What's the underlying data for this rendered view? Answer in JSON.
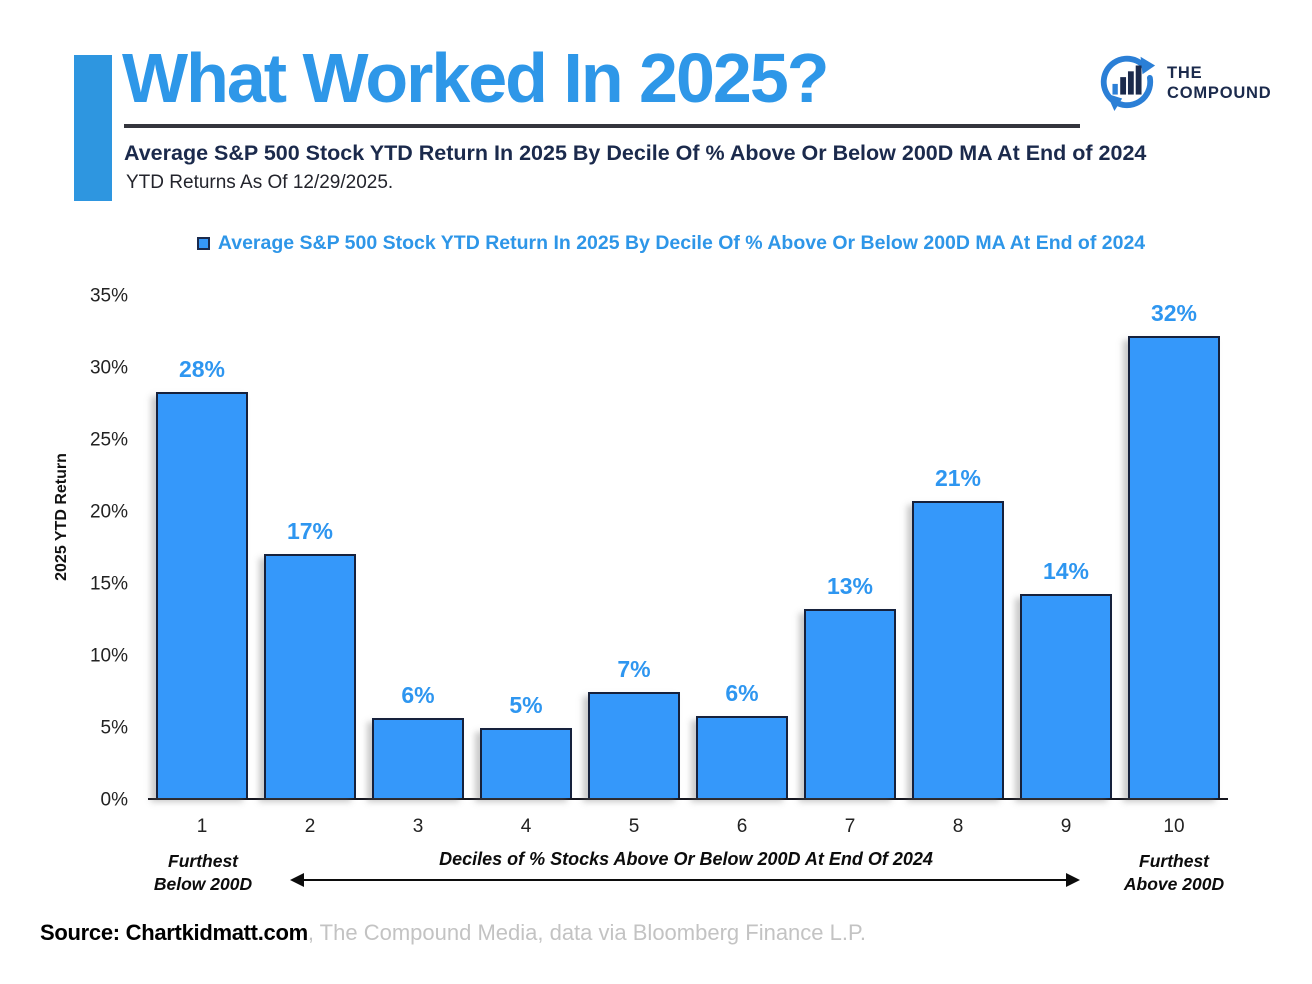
{
  "header": {
    "title": "What Worked In 2025?",
    "subtitle": "Average S&P 500 Stock YTD Return In 2025 By Decile Of % Above Or Below 200D MA At End of 2024",
    "as_of": "YTD Returns As Of 12/29/2025."
  },
  "brand": {
    "line1": "THE",
    "line2": "COMPOUND"
  },
  "chart_data": {
    "type": "bar",
    "legend": "Average S&P 500 Stock YTD Return In 2025 By Decile Of % Above Or Below 200D MA At End of 2024",
    "legend_position": "top",
    "categories": [
      "1",
      "2",
      "3",
      "4",
      "5",
      "6",
      "7",
      "8",
      "9",
      "10"
    ],
    "values": [
      28.3,
      17.0,
      5.6,
      4.9,
      7.4,
      5.7,
      13.2,
      20.7,
      14.2,
      32.2
    ],
    "bar_labels": [
      "28%",
      "17%",
      "6%",
      "5%",
      "7%",
      "6%",
      "13%",
      "21%",
      "14%",
      "32%"
    ],
    "xlabel": "Deciles of % Stocks Above Or Below 200D At End Of 2024",
    "ylabel": "2025 YTD Return",
    "ylim": [
      0,
      35
    ],
    "grid": false,
    "yticks": [
      {
        "label": "0%",
        "value": 0
      },
      {
        "label": "5%",
        "value": 5
      },
      {
        "label": "10%",
        "value": 10
      },
      {
        "label": "15%",
        "value": 15
      },
      {
        "label": "20%",
        "value": 20
      },
      {
        "label": "25%",
        "value": 25
      },
      {
        "label": "30%",
        "value": 30
      },
      {
        "label": "35%",
        "value": 35
      }
    ],
    "bar_color": "#3598fa",
    "bar_border_color": "#16213c",
    "data_label_color": "#2e96f0",
    "accent_color": "#2e97e8"
  },
  "xaxis_annot": {
    "left_line1": "Furthest",
    "left_line2": "Below 200D",
    "center": "Deciles of % Stocks Above Or Below 200D At End Of 2024",
    "right_line1": "Furthest",
    "right_line2": "Above 200D"
  },
  "footer": {
    "source_bold": "Source: Chartkidmatt.com",
    "source_rest": ", The Compound Media, data via Bloomberg Finance L.P."
  }
}
